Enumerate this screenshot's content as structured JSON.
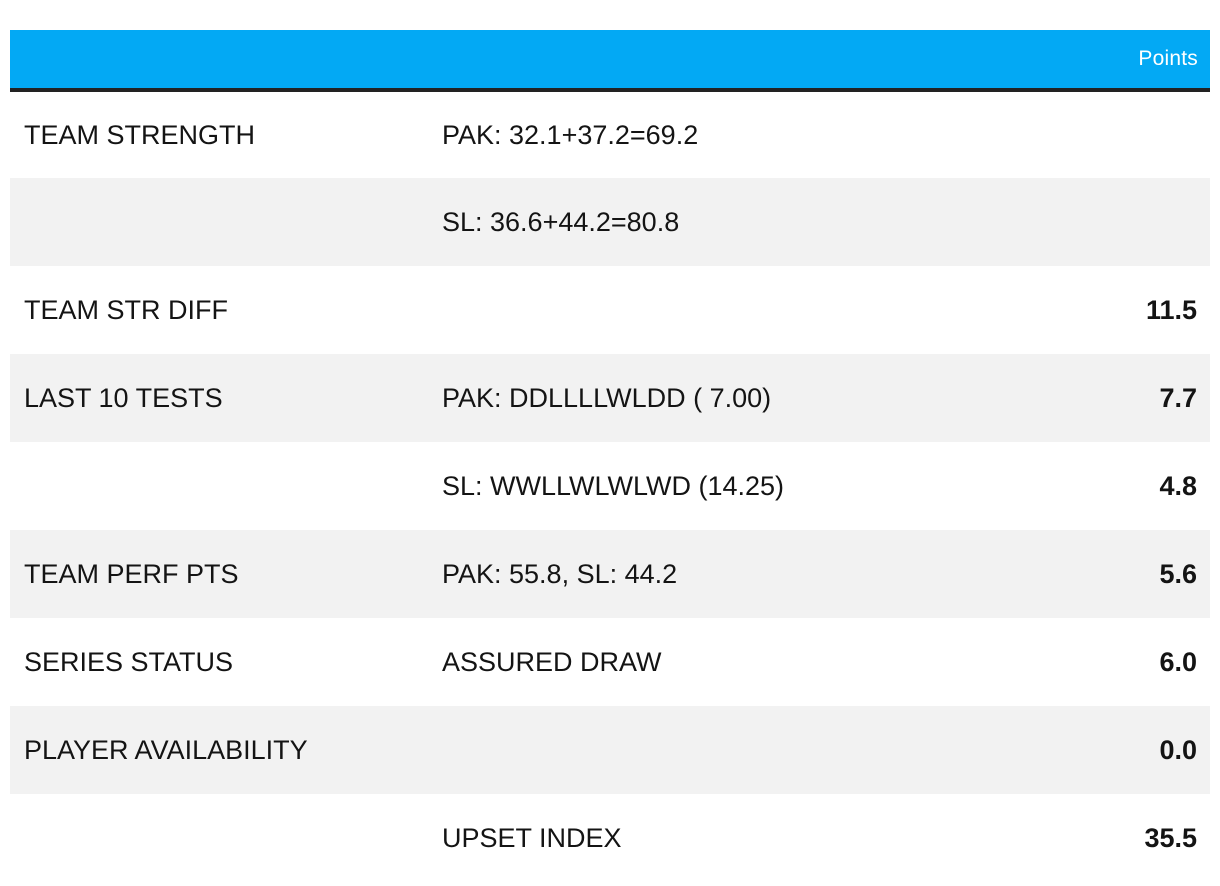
{
  "header": {
    "points_label": "Points"
  },
  "rows": [
    {
      "label": "TEAM STRENGTH",
      "detail": "PAK: 32.1+37.2=69.2",
      "points": ""
    },
    {
      "label": "",
      "detail": "SL: 36.6+44.2=80.8",
      "points": ""
    },
    {
      "label": "TEAM STR DIFF",
      "detail": "",
      "points": "11.5"
    },
    {
      "label": "LAST 10 TESTS",
      "detail": "PAK: DDLLLLWLDD ( 7.00)",
      "points": "7.7"
    },
    {
      "label": "",
      "detail": "SL: WWLLWLWLWD (14.25)",
      "points": "4.8"
    },
    {
      "label": "TEAM PERF PTS",
      "detail": "PAK: 55.8, SL: 44.2",
      "points": "5.6"
    },
    {
      "label": "SERIES STATUS",
      "detail": "ASSURED DRAW",
      "points": "6.0"
    },
    {
      "label": "PLAYER AVAILABILITY",
      "detail": "",
      "points": "0.0"
    },
    {
      "label": "",
      "detail": "UPSET INDEX",
      "points": "35.5"
    }
  ],
  "colors": {
    "header_bg": "#03a9f4",
    "header_border": "#222222",
    "alt_row_bg": "#f2f2f2"
  }
}
